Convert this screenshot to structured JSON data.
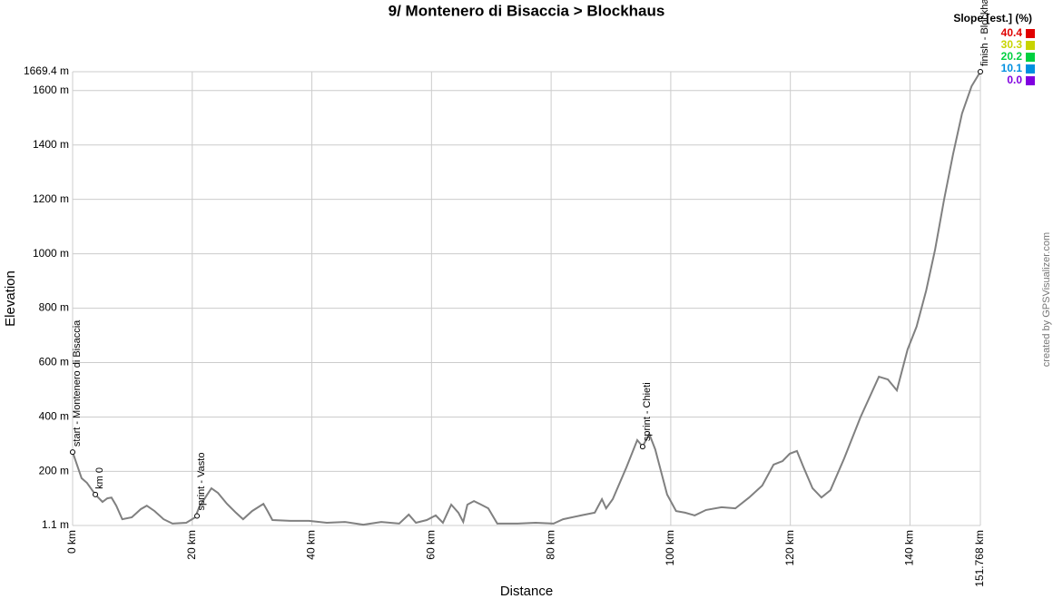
{
  "chart_data": {
    "type": "line",
    "title": "9/ Montenero di Bisaccia > Blockhaus",
    "x_label": "Distance",
    "y_label": "Elevation",
    "watermark": "created by GPSVisualizer.com",
    "color": "#808080",
    "grid": true,
    "xlim": [
      0,
      151.768
    ],
    "ylim": [
      1.1,
      1669.4
    ],
    "xticks": [
      {
        "value": 0,
        "label": "0 km"
      },
      {
        "value": 20,
        "label": "20 km"
      },
      {
        "value": 40,
        "label": "40 km"
      },
      {
        "value": 60,
        "label": "60 km"
      },
      {
        "value": 80,
        "label": "80 km"
      },
      {
        "value": 100,
        "label": "100 km"
      },
      {
        "value": 120,
        "label": "120 km"
      },
      {
        "value": 140,
        "label": "140 km"
      },
      {
        "value": 151.768,
        "label": "151.768 km"
      }
    ],
    "yticks": [
      {
        "value": 1.1,
        "label": "1.1 m"
      },
      {
        "value": 200,
        "label": "200 m"
      },
      {
        "value": 400,
        "label": "400 m"
      },
      {
        "value": 600,
        "label": "600 m"
      },
      {
        "value": 800,
        "label": "800 m"
      },
      {
        "value": 1000,
        "label": "1000 m"
      },
      {
        "value": 1200,
        "label": "1200 m"
      },
      {
        "value": 1400,
        "label": "1400 m"
      },
      {
        "value": 1600,
        "label": "1600 m"
      },
      {
        "value": 1669.4,
        "label": "1669.4 m"
      }
    ],
    "x": [
      0,
      1.5,
      2.4,
      3.8,
      5.0,
      5.8,
      6.5,
      7.3,
      8.3,
      9.9,
      11.4,
      12.4,
      13.7,
      15.2,
      16.7,
      19.0,
      20.5,
      21.2,
      22.5,
      23.2,
      24.3,
      25.8,
      27.3,
      28.5,
      30.0,
      31.9,
      32.6,
      33.4,
      36.4,
      39.5,
      42.5,
      45.5,
      48.6,
      51.6,
      54.6,
      56.2,
      57.4,
      59.2,
      60.7,
      61.9,
      63.3,
      64.5,
      65.3,
      66.0,
      67.1,
      68.3,
      69.5,
      71.0,
      74.4,
      77.4,
      80.4,
      82.0,
      85.0,
      87.3,
      88.5,
      89.2,
      90.3,
      92.6,
      94.4,
      95.3,
      96.4,
      97.4,
      99.4,
      100.9,
      102.4,
      104.0,
      105.9,
      108.5,
      110.8,
      113.1,
      115.3,
      117.2,
      118.7,
      119.9,
      121.1,
      122.2,
      123.7,
      125.2,
      126.7,
      129.0,
      131.7,
      134.8,
      136.3,
      137.8,
      139.6,
      141.1,
      142.7,
      144.2,
      145.7,
      147.2,
      148.7,
      150.3,
      151.768
    ],
    "values": [
      271,
      175,
      158,
      115,
      88,
      101,
      104,
      74,
      24,
      31,
      61,
      74,
      54,
      24,
      8,
      11,
      31,
      71,
      115,
      138,
      121,
      81,
      48,
      24,
      54,
      81,
      54,
      21,
      18,
      18,
      11,
      14,
      4,
      14,
      8,
      41,
      11,
      21,
      38,
      11,
      78,
      48,
      14,
      78,
      91,
      78,
      64,
      8,
      8,
      11,
      8,
      24,
      38,
      48,
      98,
      64,
      98,
      215,
      315,
      291,
      338,
      281,
      115,
      54,
      48,
      38,
      58,
      68,
      64,
      104,
      148,
      225,
      238,
      265,
      275,
      215,
      138,
      104,
      131,
      248,
      398,
      548,
      538,
      498,
      648,
      732,
      865,
      1015,
      1199,
      1366,
      1516,
      1616,
      1669.4
    ],
    "annotations": [
      {
        "x": 0,
        "y": 271,
        "label": "start - Montenero di Bisaccia"
      },
      {
        "x": 3.8,
        "y": 115,
        "label": "km 0"
      },
      {
        "x": 20.8,
        "y": 36,
        "label": "sprint - Vasto"
      },
      {
        "x": 95.3,
        "y": 291,
        "label": "sprint - Chieti"
      },
      {
        "x": 151.768,
        "y": 1669.4,
        "label": "finish - Blockhaus"
      }
    ],
    "legend": {
      "title": "Slope [est.] (%)",
      "items": [
        {
          "label": "40.4",
          "color": "#e00000"
        },
        {
          "label": "30.3",
          "color": "#c8d400"
        },
        {
          "label": "20.2",
          "color": "#00d040"
        },
        {
          "label": "10.1",
          "color": "#0090e0"
        },
        {
          "label": "0.0",
          "color": "#8000e0"
        }
      ]
    }
  }
}
